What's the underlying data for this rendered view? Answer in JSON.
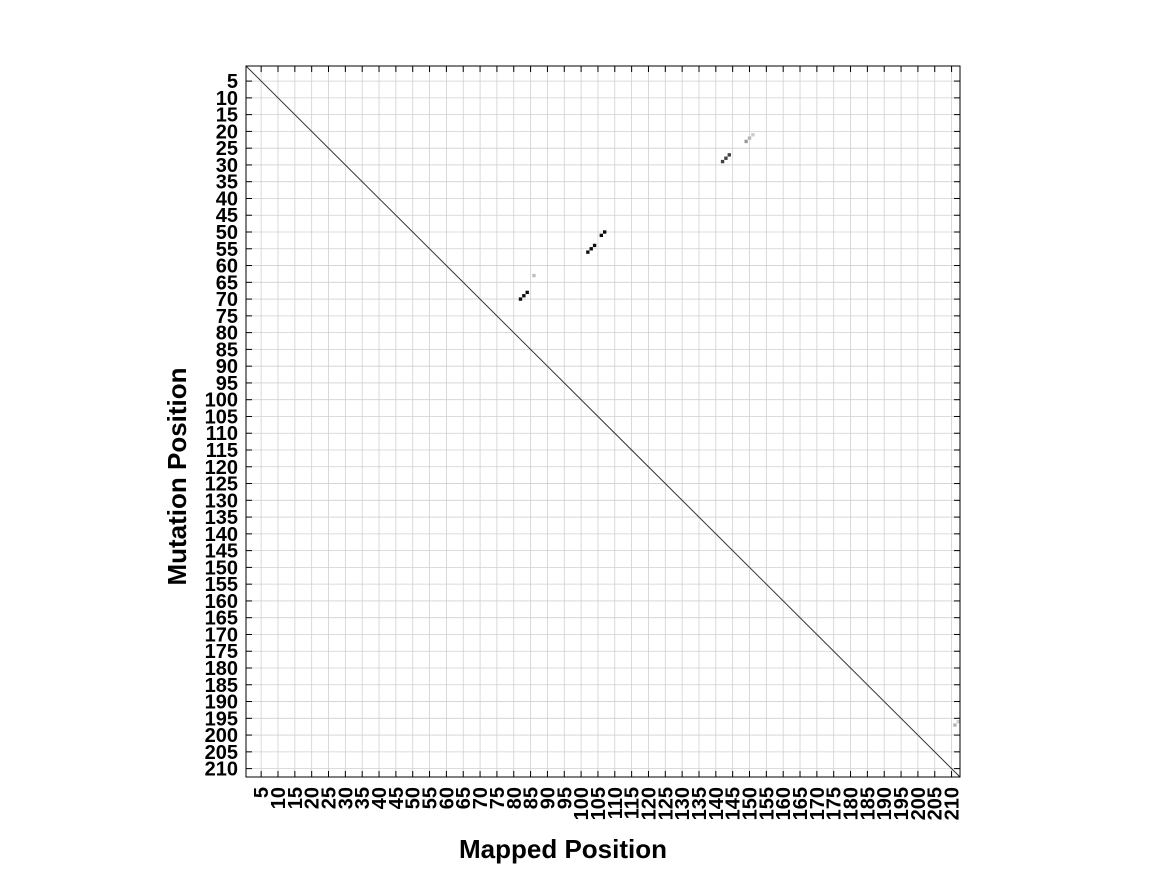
{
  "chart_data": {
    "type": "heatmap",
    "title": "",
    "xlabel": "Mapped Position",
    "ylabel": "Mutation Position",
    "xlim": [
      1,
      212
    ],
    "ylim": [
      1,
      212
    ],
    "y_axis_inverted": true,
    "grid": true,
    "x_ticks": [
      5,
      10,
      15,
      20,
      25,
      30,
      35,
      40,
      45,
      50,
      55,
      60,
      65,
      70,
      75,
      80,
      85,
      90,
      95,
      100,
      105,
      110,
      115,
      120,
      125,
      130,
      135,
      140,
      145,
      150,
      155,
      160,
      165,
      170,
      175,
      180,
      185,
      190,
      195,
      200,
      205,
      210
    ],
    "y_ticks": [
      5,
      10,
      15,
      20,
      25,
      30,
      35,
      40,
      45,
      50,
      55,
      60,
      65,
      70,
      75,
      80,
      85,
      90,
      95,
      100,
      105,
      110,
      115,
      120,
      125,
      130,
      135,
      140,
      145,
      150,
      155,
      160,
      165,
      170,
      175,
      180,
      185,
      190,
      195,
      200,
      205,
      210
    ],
    "diagonal_line": true,
    "series": [
      {
        "points": [
          {
            "x": 84,
            "y": 68,
            "v": 0.95
          },
          {
            "x": 83,
            "y": 69,
            "v": 0.95
          },
          {
            "x": 82,
            "y": 70,
            "v": 0.95
          },
          {
            "x": 86,
            "y": 63,
            "v": 0.25
          },
          {
            "x": 102,
            "y": 56,
            "v": 0.95
          },
          {
            "x": 103,
            "y": 55,
            "v": 0.95
          },
          {
            "x": 104,
            "y": 54,
            "v": 0.95
          },
          {
            "x": 106,
            "y": 51,
            "v": 0.95
          },
          {
            "x": 107,
            "y": 50,
            "v": 0.95
          },
          {
            "x": 142,
            "y": 29,
            "v": 0.75
          },
          {
            "x": 143,
            "y": 28,
            "v": 0.75
          },
          {
            "x": 144,
            "y": 27,
            "v": 0.75
          },
          {
            "x": 149,
            "y": 23,
            "v": 0.4
          },
          {
            "x": 150,
            "y": 22,
            "v": 0.3
          },
          {
            "x": 151,
            "y": 21,
            "v": 0.2
          },
          {
            "x": 211,
            "y": 197,
            "v": 0.3
          },
          {
            "x": 212,
            "y": 196,
            "v": 0.2
          }
        ]
      }
    ]
  }
}
